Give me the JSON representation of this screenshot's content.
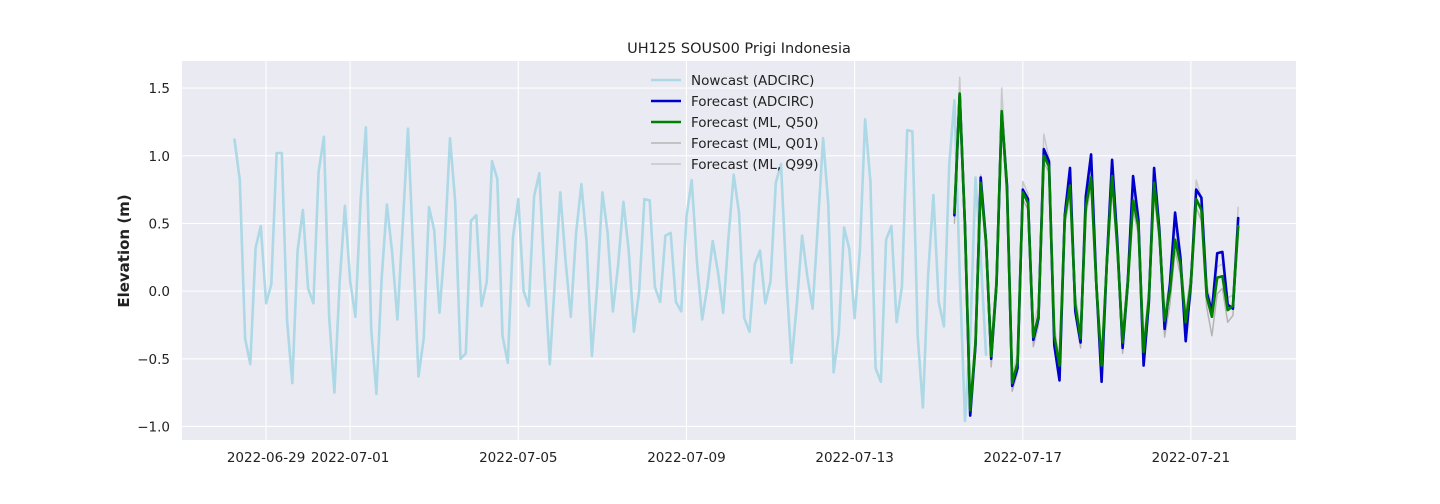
{
  "chart_data": {
    "type": "line",
    "title": "UH125 SOUS00 Prigi Indonesia",
    "xlabel": "",
    "ylabel": "Elevation (m)",
    "xlim": [
      "2022-06-27T00:00",
      "2022-07-23T12:00"
    ],
    "ylim": [
      -1.1,
      1.7
    ],
    "x_tick_labels": [
      "2022-06-29",
      "2022-07-01",
      "2022-07-05",
      "2022-07-09",
      "2022-07-13",
      "2022-07-17",
      "2022-07-21"
    ],
    "x_tick_dates": [
      "2022-06-29",
      "2022-07-01",
      "2022-07-05",
      "2022-07-09",
      "2022-07-13",
      "2022-07-17",
      "2022-07-21"
    ],
    "y_ticks": [
      -1.0,
      -0.5,
      0.0,
      0.5,
      1.0,
      1.5
    ],
    "y_tick_labels": [
      "−1.0",
      "−0.5",
      "0.0",
      "0.5",
      "1.0",
      "1.5"
    ],
    "grid": true,
    "legend_position": "upper-center",
    "background_color": "#eaeaf2",
    "series": [
      {
        "name": "Nowcast (ADCIRC)",
        "color": "#add8e6",
        "width": 2.6,
        "x_start": "2022-06-28T06:00",
        "x_step_hours": 3,
        "values": [
          1.12,
          0.82,
          -0.35,
          -0.54,
          0.32,
          0.48,
          -0.09,
          0.05,
          1.02,
          1.02,
          -0.22,
          -0.68,
          0.3,
          0.6,
          0.02,
          -0.09,
          0.88,
          1.14,
          -0.18,
          -0.75,
          0.06,
          0.63,
          0.07,
          -0.19,
          0.68,
          1.21,
          -0.28,
          -0.76,
          0.1,
          0.64,
          0.28,
          -0.21,
          0.48,
          1.2,
          0.29,
          -0.63,
          -0.35,
          0.62,
          0.45,
          -0.16,
          0.34,
          1.13,
          0.66,
          -0.5,
          -0.46,
          0.52,
          0.56,
          -0.11,
          0.07,
          0.96,
          0.83,
          -0.33,
          -0.53,
          0.4,
          0.68,
          0.0,
          -0.11,
          0.7,
          0.87,
          0.1,
          -0.54,
          0.1,
          0.73,
          0.22,
          -0.19,
          0.43,
          0.79,
          0.36,
          -0.48,
          0.03,
          0.73,
          0.43,
          -0.15,
          0.19,
          0.66,
          0.3,
          -0.3,
          0.0,
          0.68,
          0.67,
          0.03,
          -0.08,
          0.41,
          0.43,
          -0.08,
          -0.15,
          0.55,
          0.82,
          0.21,
          -0.21,
          0.04,
          0.37,
          0.14,
          -0.16,
          0.4,
          0.86,
          0.58,
          -0.2,
          -0.3,
          0.2,
          0.3,
          -0.09,
          0.07,
          0.8,
          0.94,
          0.1,
          -0.53,
          -0.1,
          0.41,
          0.11,
          -0.13,
          0.48,
          1.13,
          0.64,
          -0.6,
          -0.31,
          0.47,
          0.31,
          -0.2,
          0.3,
          1.27,
          0.81,
          -0.57,
          -0.67,
          0.38,
          0.48,
          -0.23,
          0.03,
          1.19,
          1.18,
          -0.33,
          -0.86,
          0.13,
          0.71,
          -0.08,
          -0.26,
          0.93,
          1.41,
          0.13,
          -0.96,
          -0.34,
          0.84,
          0.26,
          -0.47
        ]
      },
      {
        "name": "Forecast (ADCIRC)",
        "color": "#0000cd",
        "width": 2.6,
        "x_start": "2022-07-15T09:00",
        "x_step_hours": 3,
        "values": [
          0.56,
          1.45,
          0.48,
          -0.92,
          -0.4,
          0.84,
          0.37,
          -0.5,
          0.05,
          1.31,
          0.78,
          -0.7,
          -0.57,
          0.75,
          0.68,
          -0.36,
          -0.2,
          1.05,
          0.96,
          -0.4,
          -0.66,
          0.56,
          0.91,
          -0.15,
          -0.38,
          0.7,
          1.01,
          0.06,
          -0.67,
          0.21,
          0.97,
          0.37,
          -0.42,
          0.07,
          0.85,
          0.53,
          -0.55,
          -0.08,
          0.91,
          0.45,
          -0.28,
          0.05,
          0.58,
          0.25,
          -0.37,
          0.06,
          0.75,
          0.69,
          -0.01,
          -0.15,
          0.28,
          0.29,
          -0.1,
          -0.13,
          0.54
        ]
      },
      {
        "name": "Forecast (ML, Q50)",
        "color": "#008000",
        "width": 2.6,
        "x_start": "2022-07-15T09:00",
        "x_step_hours": 3,
        "values": [
          0.58,
          1.46,
          0.47,
          -0.88,
          -0.38,
          0.8,
          0.36,
          -0.48,
          0.06,
          1.33,
          0.75,
          -0.68,
          -0.53,
          0.73,
          0.65,
          -0.34,
          -0.18,
          1.0,
          0.92,
          -0.33,
          -0.55,
          0.54,
          0.78,
          -0.1,
          -0.35,
          0.62,
          0.84,
          0.05,
          -0.55,
          0.2,
          0.85,
          0.33,
          -0.38,
          0.06,
          0.67,
          0.48,
          -0.45,
          -0.05,
          0.8,
          0.42,
          -0.22,
          0.0,
          0.38,
          0.2,
          -0.23,
          0.06,
          0.68,
          0.6,
          -0.04,
          -0.19,
          0.1,
          0.11,
          -0.14,
          -0.11,
          0.48
        ]
      },
      {
        "name": "Forecast (ML, Q01)",
        "color": "#b4b4b4",
        "width": 1.5,
        "x_start": "2022-07-15T09:00",
        "x_step_hours": 3,
        "values": [
          0.5,
          1.4,
          0.42,
          -0.92,
          -0.44,
          0.75,
          0.3,
          -0.56,
          -0.02,
          1.25,
          0.7,
          -0.74,
          -0.6,
          0.68,
          0.6,
          -0.41,
          -0.25,
          0.95,
          0.88,
          -0.4,
          -0.6,
          0.48,
          0.72,
          -0.18,
          -0.42,
          0.56,
          0.78,
          -0.02,
          -0.62,
          0.14,
          0.79,
          0.26,
          -0.46,
          -0.02,
          0.6,
          0.42,
          -0.53,
          -0.12,
          0.72,
          0.36,
          -0.34,
          -0.1,
          0.3,
          0.12,
          -0.3,
          -0.04,
          0.62,
          0.52,
          -0.12,
          -0.33,
          -0.02,
          0.02,
          -0.23,
          -0.18,
          0.42
        ]
      },
      {
        "name": "Forecast (ML, Q99)",
        "color": "#c8c8c8",
        "width": 1.5,
        "x_start": "2022-07-15T09:00",
        "x_step_hours": 3,
        "values": [
          0.64,
          1.58,
          0.54,
          -0.82,
          -0.32,
          0.86,
          0.42,
          -0.4,
          0.14,
          1.5,
          0.82,
          -0.62,
          -0.46,
          0.81,
          0.72,
          -0.26,
          -0.1,
          1.16,
          0.98,
          -0.26,
          -0.5,
          0.62,
          0.85,
          -0.03,
          -0.28,
          0.7,
          0.92,
          0.12,
          -0.48,
          0.27,
          0.92,
          0.41,
          -0.31,
          0.14,
          0.75,
          0.55,
          -0.38,
          0.03,
          0.88,
          0.5,
          -0.15,
          0.08,
          0.46,
          0.28,
          -0.16,
          0.14,
          0.82,
          0.69,
          0.05,
          -0.1,
          0.18,
          0.2,
          -0.05,
          -0.03,
          0.62
        ]
      }
    ]
  }
}
